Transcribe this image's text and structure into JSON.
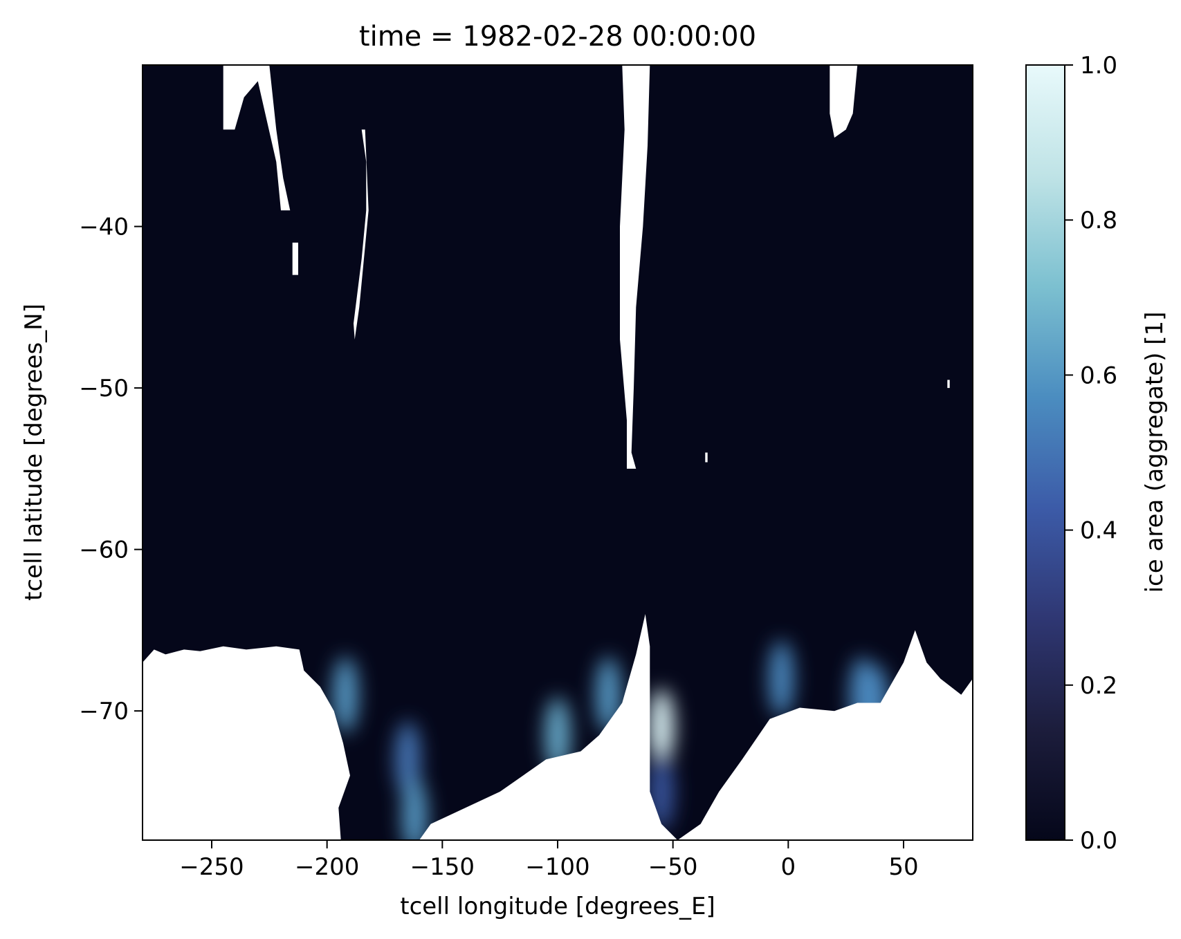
{
  "chart_data": {
    "type": "heatmap",
    "title": "time = 1982-02-28 00:00:00",
    "xlabel": "tcell longitude [degrees_E]",
    "ylabel": "tcell latitude [degrees_N]",
    "xlim": [
      -280,
      80
    ],
    "ylim": [
      -78,
      -30
    ],
    "xticks": [
      -250,
      -200,
      -150,
      -100,
      -50,
      0,
      50
    ],
    "xtick_labels": [
      "−250",
      "−200",
      "−150",
      "−100",
      "−50",
      "0",
      "50"
    ],
    "yticks": [
      -40,
      -50,
      -60,
      -70
    ],
    "ytick_labels": [
      "−40",
      "−50",
      "−60",
      "−70"
    ],
    "colorbar": {
      "label": "ice area  (aggregate) [1]",
      "range": [
        0,
        1
      ],
      "ticks": [
        0.0,
        0.2,
        0.4,
        0.6,
        0.8,
        1.0
      ],
      "tick_labels": [
        "0.0",
        "0.2",
        "0.4",
        "0.6",
        "0.8",
        "1.0"
      ],
      "colormap": [
        "#05071a",
        "#1c1d3c",
        "#2f3773",
        "#3c5ba8",
        "#4b8dc0",
        "#7cc0d0",
        "#bfe3e6",
        "#e8f9fb"
      ]
    },
    "background_color": "#05071a",
    "land_color": "#ffffff",
    "land_regions": [
      {
        "name": "antarctica",
        "outline": [
          [
            -280,
            -67
          ],
          [
            -275,
            -66.2
          ],
          [
            -270,
            -66.5
          ],
          [
            -262,
            -66.2
          ],
          [
            -255,
            -66.3
          ],
          [
            -245,
            -66.0
          ],
          [
            -235,
            -66.2
          ],
          [
            -222,
            -66.0
          ],
          [
            -212,
            -66.2
          ],
          [
            -210,
            -67.5
          ],
          [
            -203,
            -68.5
          ],
          [
            -197,
            -70
          ],
          [
            -193,
            -72
          ],
          [
            -190,
            -74
          ],
          [
            -195,
            -76
          ],
          [
            -194,
            -78
          ],
          [
            -160,
            -78
          ],
          [
            -155,
            -77
          ],
          [
            -140,
            -76
          ],
          [
            -125,
            -75
          ],
          [
            -115,
            -74
          ],
          [
            -105,
            -73
          ],
          [
            -90,
            -72.5
          ],
          [
            -82,
            -71.5
          ],
          [
            -72,
            -69.5
          ],
          [
            -66,
            -66.5
          ],
          [
            -62,
            -64
          ],
          [
            -60,
            -66
          ],
          [
            -60,
            -75
          ],
          [
            -55,
            -77
          ],
          [
            -48,
            -78
          ],
          [
            -38,
            -77
          ],
          [
            -30,
            -75
          ],
          [
            -20,
            -73
          ],
          [
            -8,
            -70.5
          ],
          [
            5,
            -69.8
          ],
          [
            20,
            -70
          ],
          [
            30,
            -69.5
          ],
          [
            40,
            -69.5
          ],
          [
            50,
            -67
          ],
          [
            55,
            -65
          ],
          [
            60,
            -67
          ],
          [
            66,
            -68
          ],
          [
            75,
            -69
          ],
          [
            80,
            -68
          ],
          [
            80,
            -78
          ],
          [
            -280,
            -78
          ]
        ]
      },
      {
        "name": "south-america",
        "outline": [
          [
            -72,
            -30
          ],
          [
            -60,
            -30
          ],
          [
            -61,
            -35
          ],
          [
            -63,
            -40
          ],
          [
            -66,
            -45
          ],
          [
            -67,
            -50
          ],
          [
            -68,
            -54
          ],
          [
            -66,
            -55
          ],
          [
            -70,
            -55
          ],
          [
            -70,
            -52
          ],
          [
            -73,
            -47
          ],
          [
            -73,
            -40
          ],
          [
            -71,
            -34
          ]
        ]
      },
      {
        "name": "new-zealand",
        "outline": [
          [
            -185,
            -34
          ],
          [
            -183.5,
            -34
          ],
          [
            -182,
            -39
          ],
          [
            -186,
            -45
          ],
          [
            -188,
            -47
          ],
          [
            -188.5,
            -46
          ],
          [
            -185,
            -42
          ],
          [
            -183,
            -39
          ],
          [
            -183,
            -36
          ]
        ]
      },
      {
        "name": "australia",
        "outline": [
          [
            -245,
            -30
          ],
          [
            -225,
            -30
          ],
          [
            -222,
            -34
          ],
          [
            -219,
            -37
          ],
          [
            -216,
            -39
          ],
          [
            -220,
            -39
          ],
          [
            -222,
            -36
          ],
          [
            -230,
            -31
          ],
          [
            -236,
            -32
          ],
          [
            -240,
            -34
          ],
          [
            -245,
            -34
          ]
        ]
      },
      {
        "name": "tasmania",
        "outline": [
          [
            -215,
            -41
          ],
          [
            -212.5,
            -41
          ],
          [
            -212.5,
            -43
          ],
          [
            -215,
            -43
          ]
        ]
      },
      {
        "name": "africa",
        "outline": [
          [
            18,
            -30
          ],
          [
            30,
            -30
          ],
          [
            28,
            -33
          ],
          [
            25,
            -34
          ],
          [
            20,
            -34.5
          ],
          [
            18,
            -33
          ]
        ]
      },
      {
        "name": "kerguelen",
        "outline": [
          [
            69,
            -49.5
          ],
          [
            70,
            -49.5
          ],
          [
            70,
            -50
          ],
          [
            69,
            -50
          ]
        ]
      },
      {
        "name": "georgia",
        "outline": [
          [
            -36,
            -54
          ],
          [
            -35,
            -54
          ],
          [
            -35,
            -54.6
          ],
          [
            -36,
            -54.6
          ]
        ]
      }
    ],
    "ice_regions": [
      {
        "name": "ross-sea-east",
        "lon": -165,
        "lat": -73,
        "value": 0.5
      },
      {
        "name": "ross-sea-core",
        "lon": -162,
        "lat": -76.5,
        "value": 0.6
      },
      {
        "name": "ross-sea-west",
        "lon": -192,
        "lat": -69,
        "value": 0.6
      },
      {
        "name": "amundsen",
        "lon": -100,
        "lat": -71.5,
        "value": 0.65
      },
      {
        "name": "bellingshausen",
        "lon": -78,
        "lat": -69,
        "value": 0.6
      },
      {
        "name": "weddell",
        "lon": -55,
        "lat": -71,
        "value": 0.95
      },
      {
        "name": "weddell-south",
        "lon": -55,
        "lat": -75,
        "value": 0.4
      },
      {
        "name": "east-1",
        "lon": -3,
        "lat": -68,
        "value": 0.55
      },
      {
        "name": "east-2",
        "lon": 32,
        "lat": -69,
        "value": 0.55
      },
      {
        "name": "east-3",
        "lon": 38,
        "lat": -69.5,
        "value": 0.55
      }
    ]
  }
}
